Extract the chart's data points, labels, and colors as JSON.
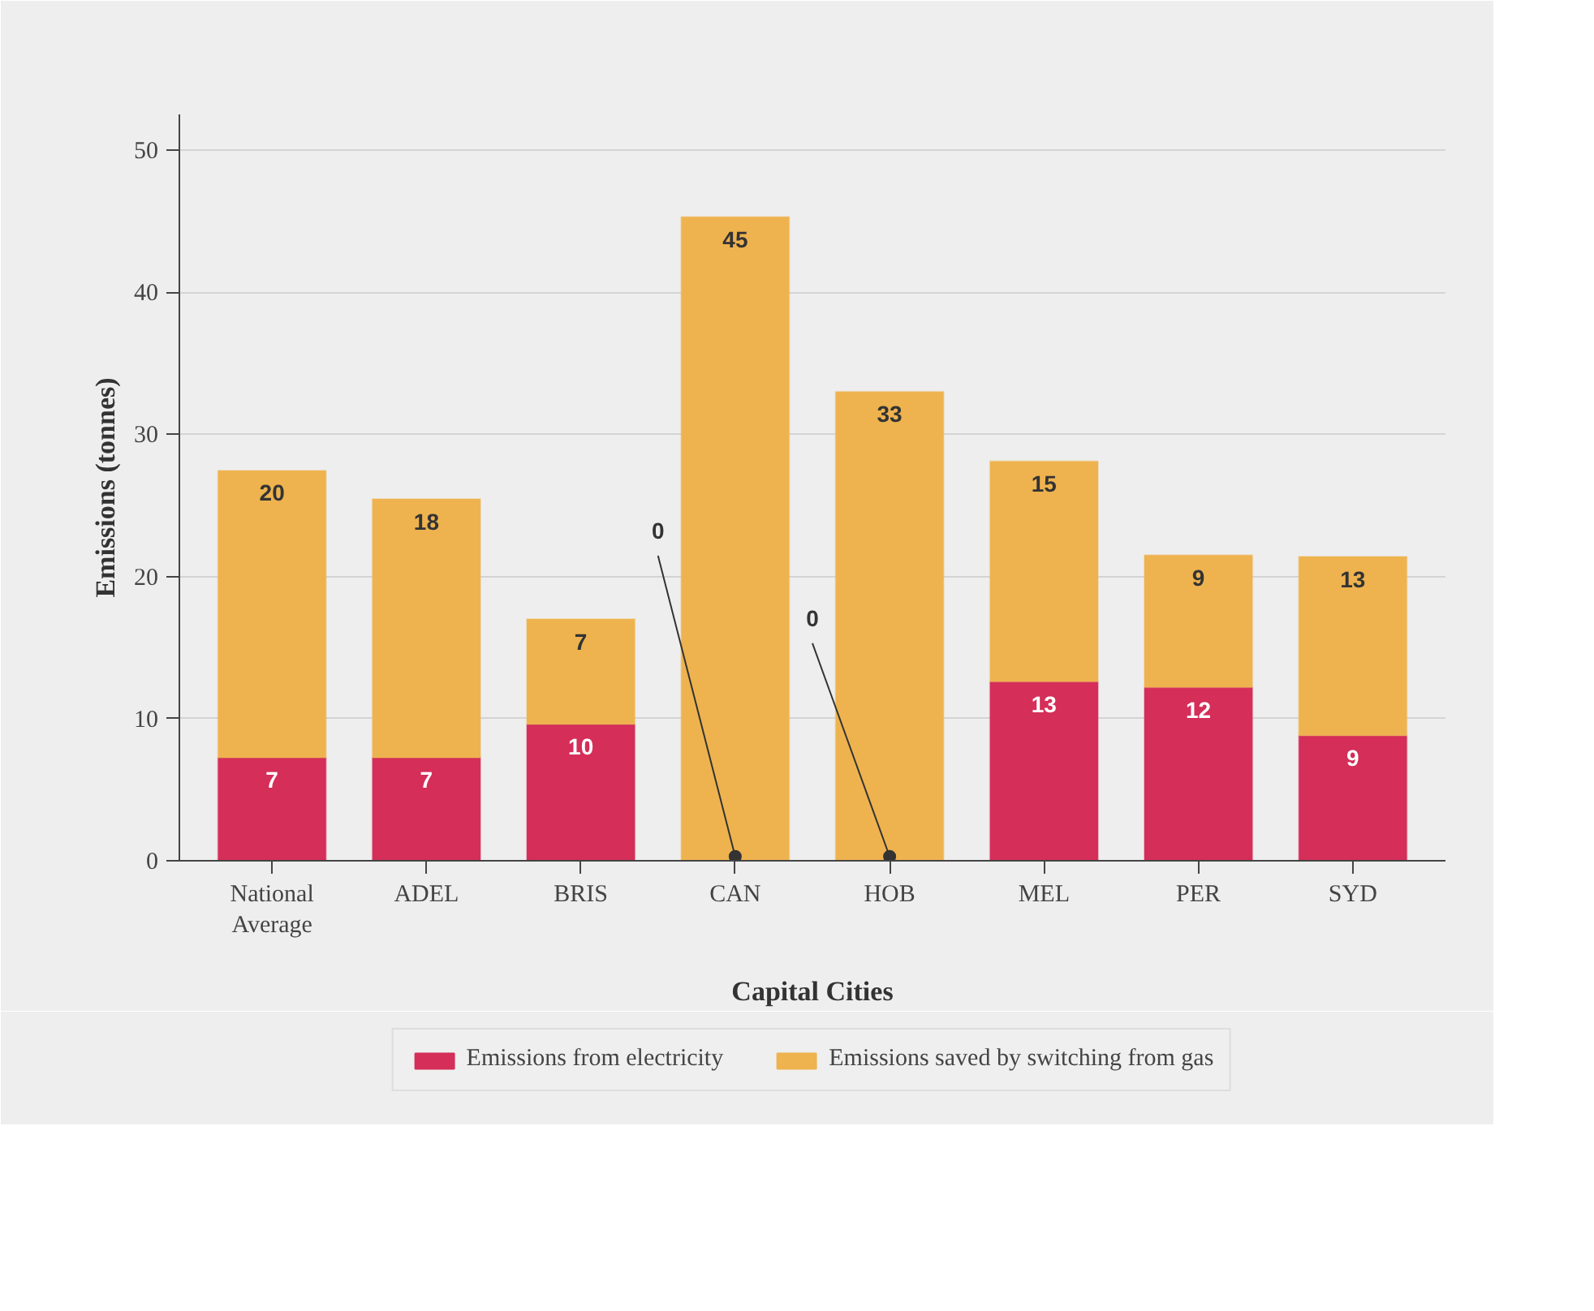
{
  "chart_data": {
    "type": "bar",
    "stacked": true,
    "xlabel": "Capital Cities",
    "ylabel": "Emissions (tonnes)",
    "categories": [
      "National\nAverage",
      "ADEL",
      "BRIS",
      "CAN",
      "HOB",
      "MEL",
      "PER",
      "SYD"
    ],
    "series": [
      {
        "name": "Emissions from electricity",
        "color": "#d42e59",
        "values": [
          7.25,
          7.25,
          9.6,
          0,
          0,
          12.6,
          12.2,
          8.8
        ],
        "value_labels": [
          "7",
          "7",
          "10",
          "0",
          "0",
          "13",
          "12",
          "9"
        ]
      },
      {
        "name": "Emissions saved by switching from gas",
        "color": "#eeb34f",
        "values": [
          20.2,
          18.2,
          7.4,
          45.3,
          33.0,
          15.5,
          9.3,
          12.6
        ],
        "value_labels": [
          "20",
          "18",
          "7",
          "45",
          "33",
          "15",
          "9",
          "13"
        ]
      }
    ],
    "ylim": [
      0,
      52.5
    ],
    "yticks": [
      0,
      10,
      20,
      30,
      40,
      50
    ],
    "grid": "y",
    "legend": "bottom"
  }
}
